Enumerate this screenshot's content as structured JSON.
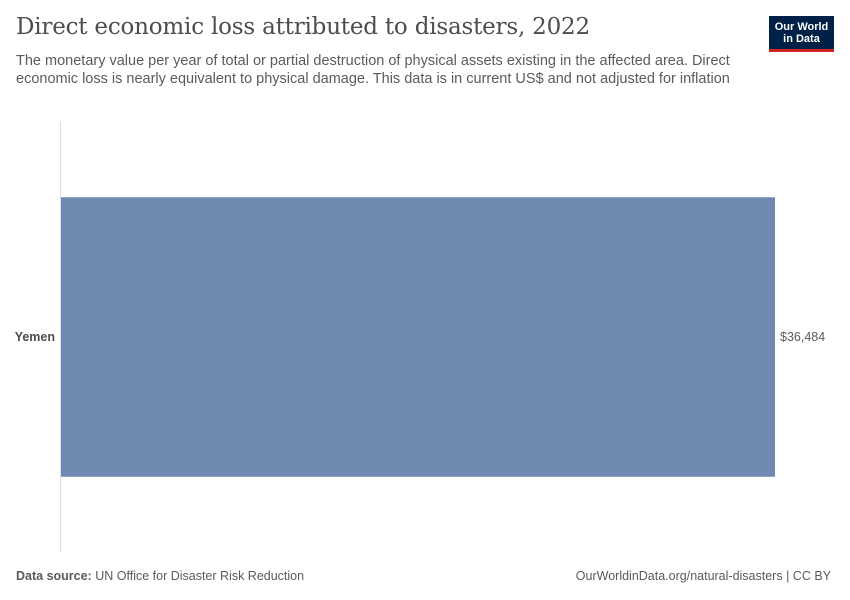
{
  "header": {
    "title": "Direct economic loss attributed to disasters, 2022",
    "subtitle": "The monetary value per year of total or partial destruction of physical assets existing in the affected area. Direct economic loss is nearly equivalent to physical damage. This data is in current US$ and not adjusted for inflation"
  },
  "logo": {
    "line1": "Our World",
    "line2": "in Data"
  },
  "footer": {
    "source_label": "Data source:",
    "source": "UN Office for Disaster Risk Reduction",
    "url": "OurWorldinData.org/natural-disasters | CC BY"
  },
  "chart_data": {
    "type": "bar",
    "orientation": "horizontal",
    "title": "Direct economic loss attributed to disasters, 2022",
    "categories": [
      "Yemen"
    ],
    "values": [
      36484
    ],
    "value_labels": [
      "$36,484"
    ],
    "xlabel": "",
    "ylabel": "",
    "xlim": [
      0,
      36484
    ],
    "colors": {
      "bar": "#6f89b0",
      "axis": "#dddddd",
      "label": "#4d4d4d"
    }
  }
}
